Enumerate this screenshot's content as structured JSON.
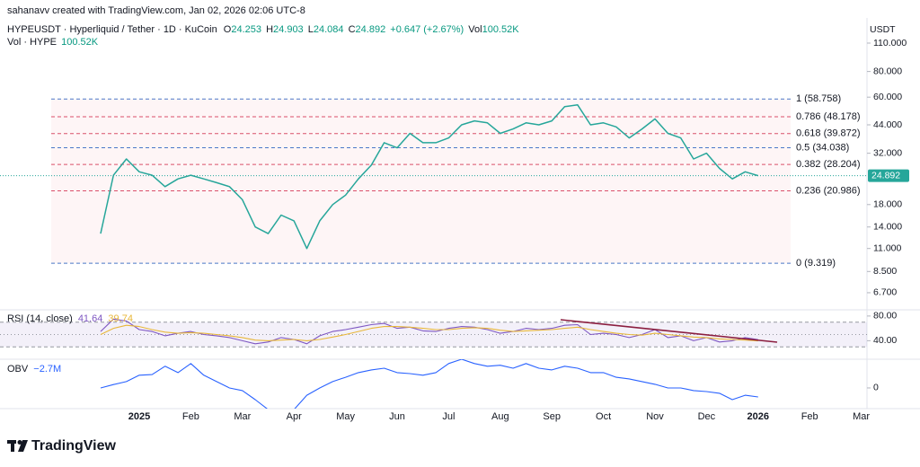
{
  "header": {
    "credit": "sahanavv created with TradingView.com, Jan 02, 2026 02:06 UTC-8",
    "symbol": "HYPEUSDT · Hyperliquid / Tether · 1D · KuCoin",
    "ohlc": [
      {
        "label": "O",
        "value": "24.253"
      },
      {
        "label": "H",
        "value": "24.903"
      },
      {
        "label": "L",
        "value": "24.084"
      },
      {
        "label": "C",
        "value": "24.892"
      }
    ],
    "change": "+0.647 (+2.67%)",
    "vol_label": "Vol",
    "vol_value": "100.52K",
    "volume_title": "Vol · HYPE",
    "volume_value": "100.52K"
  },
  "chart_data": [
    {
      "type": "line",
      "y_unit": "USDT",
      "log_scale": true,
      "color": "#26a69a",
      "categories": [
        null,
        null,
        null,
        null,
        "2025",
        null,
        null,
        null,
        "Feb",
        null,
        null,
        null,
        "Mar",
        null,
        null,
        null,
        "Apr",
        null,
        null,
        null,
        "May",
        null,
        null,
        null,
        "Jun",
        null,
        null,
        null,
        "Jul",
        null,
        null,
        null,
        "Aug",
        null,
        null,
        null,
        "Sep",
        null,
        null,
        null,
        "Oct",
        null,
        null,
        null,
        "Nov",
        null,
        null,
        null,
        "Dec",
        null,
        null,
        null,
        "2026",
        null,
        null,
        null,
        "Feb",
        null,
        null,
        null,
        "Mar"
      ],
      "values": [
        null,
        13,
        25,
        30,
        26,
        25,
        22,
        24,
        25,
        24,
        23,
        22,
        19,
        14,
        13,
        16,
        15,
        11,
        15,
        18,
        20,
        24,
        28,
        36,
        34,
        40,
        36,
        36,
        38,
        44,
        46,
        45,
        40,
        42,
        45,
        44,
        46,
        54,
        55,
        44,
        45,
        43,
        38,
        42,
        47,
        40,
        38,
        30,
        32,
        27,
        24,
        26,
        24.892,
        null,
        null,
        null,
        null,
        null,
        null,
        null,
        null
      ],
      "ylim": [
        5.53,
        145.8
      ],
      "yticks": [
        {
          "value": 110,
          "label": "110.000"
        },
        {
          "value": 80,
          "label": "80.000"
        },
        {
          "value": 60,
          "label": "60.000"
        },
        {
          "value": 44,
          "label": "44.000"
        },
        {
          "value": 32,
          "label": "32.000"
        },
        {
          "value": 18,
          "label": "18.000"
        },
        {
          "value": 14,
          "label": "14.000"
        },
        {
          "value": 11,
          "label": "11.000"
        },
        {
          "value": 8.5,
          "label": "8.500"
        },
        {
          "value": 6.7,
          "label": "6.700"
        }
      ],
      "fib_levels": [
        {
          "label": "1 (58.758)",
          "value": 58.758,
          "color": "#4a78c8"
        },
        {
          "label": "0.786 (48.178)",
          "value": 48.178,
          "color": "#d9506a"
        },
        {
          "label": "0.618 (39.872)",
          "value": 39.872,
          "color": "#d9506a"
        },
        {
          "label": "0.5 (34.038)",
          "value": 34.038,
          "color": "#4a78c8"
        },
        {
          "label": "0.382 (28.204)",
          "value": 28.204,
          "color": "#d9506a"
        },
        {
          "label": "0.236 (20.986)",
          "value": 20.986,
          "color": "#d9506a"
        },
        {
          "label": "0 (9.319)",
          "value": 9.319,
          "color": "#4a78c8"
        }
      ]
    },
    {
      "type": "line",
      "title": "RSI (14, close)",
      "series": [
        {
          "color": "#7e57c2",
          "values": [
            null,
            55,
            75,
            72,
            58,
            55,
            48,
            52,
            55,
            50,
            48,
            45,
            40,
            35,
            38,
            45,
            42,
            35,
            48,
            55,
            58,
            62,
            66,
            68,
            60,
            62,
            56,
            55,
            60,
            63,
            62,
            58,
            52,
            55,
            60,
            58,
            60,
            65,
            66,
            50,
            52,
            50,
            45,
            50,
            58,
            45,
            48,
            40,
            45,
            38,
            40,
            45,
            41.64,
            null,
            null,
            null,
            null,
            null,
            null,
            null,
            null
          ]
        },
        {
          "color": "#e8b73a",
          "values": [
            null,
            50,
            60,
            65,
            63,
            58,
            54,
            52,
            53,
            52,
            50,
            48,
            45,
            41,
            40,
            41,
            42,
            40,
            42,
            46,
            50,
            55,
            60,
            63,
            63,
            62,
            60,
            58,
            58,
            60,
            61,
            60,
            57,
            55,
            56,
            57,
            58,
            60,
            62,
            58,
            55,
            52,
            50,
            49,
            52,
            50,
            48,
            46,
            45,
            43,
            42,
            41,
            39.74,
            null,
            null,
            null,
            null,
            null,
            null,
            null,
            null
          ]
        }
      ],
      "bands": [
        30,
        50,
        70
      ],
      "ylim": [
        10,
        90
      ],
      "yticks": [
        {
          "value": 80,
          "label": "80.00"
        },
        {
          "value": 40,
          "label": "40.00"
        }
      ]
    },
    {
      "type": "line",
      "title": "OBV",
      "color": "#2962ff",
      "values": [
        null,
        0,
        1,
        1.9,
        3.8,
        4,
        6.5,
        4.6,
        7.3,
        3.8,
        1.9,
        0,
        -0.8,
        -3.5,
        -6.5,
        -6.5,
        -6.5,
        -2.2,
        0,
        1.9,
        3.2,
        4.6,
        5.4,
        5.9,
        4.6,
        4.3,
        3.8,
        4.6,
        7.3,
        8.6,
        7.3,
        6.5,
        6.8,
        5.9,
        7.3,
        5.9,
        5.4,
        6.5,
        5.9,
        4.6,
        4.6,
        3.2,
        2.7,
        1.9,
        1.1,
        0,
        0,
        -0.8,
        -1.1,
        -1.6,
        -3.5,
        -2.2,
        -2.7,
        null,
        null,
        null,
        null,
        null,
        null,
        null,
        null
      ],
      "value_labels": [
        null,
        null,
        null,
        null,
        null,
        null,
        null,
        null,
        null,
        null,
        null,
        null,
        null,
        null,
        null,
        null,
        null,
        null,
        null,
        null,
        null,
        null,
        null,
        null,
        null,
        null,
        null,
        null,
        null,
        null,
        null,
        null,
        null,
        null,
        null,
        null,
        null,
        null,
        null,
        null,
        null,
        null,
        null,
        null,
        null,
        null,
        null,
        null,
        null,
        null,
        null,
        null,
        "−2.7M",
        null,
        null,
        null,
        null,
        null,
        null,
        null,
        null
      ],
      "ylim": [
        -6.2,
        8.6
      ],
      "yticks": [
        0
      ]
    }
  ],
  "footer": {
    "brand": "TradingView"
  }
}
